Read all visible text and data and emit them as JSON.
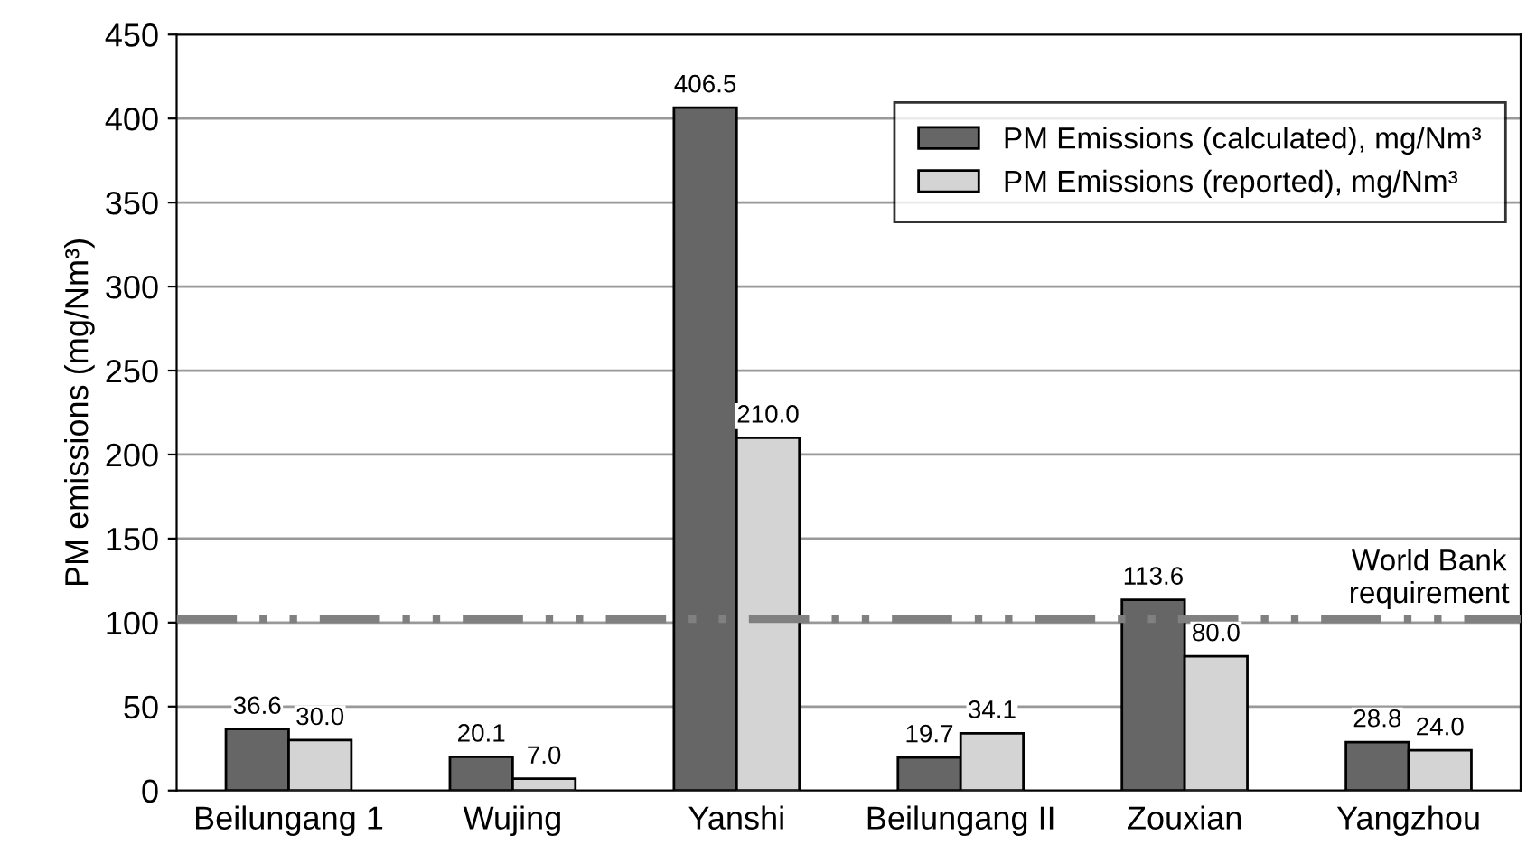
{
  "chart_data": {
    "type": "bar",
    "ylabel": "PM emissions (mg/Nm³)",
    "categories": [
      "Beilungang 1",
      "Wujing",
      "Yanshi",
      "Beilungang II",
      "Zouxian",
      "Yangzhou"
    ],
    "series": [
      {
        "name": "PM Emissions (calculated), mg/Nm³",
        "color": "#666666",
        "values": [
          36.6,
          20.1,
          406.5,
          19.7,
          113.6,
          28.8
        ],
        "value_labels": [
          "36.6",
          "20.1",
          "406.5",
          "19.7",
          "113.6",
          "28.8"
        ]
      },
      {
        "name": "PM Emissions (reported), mg/Nm³",
        "color": "#d4d4d4",
        "values": [
          30.0,
          7.0,
          210.0,
          34.1,
          80.0,
          24.0
        ],
        "value_labels": [
          "30.0",
          "7.0",
          "210.0",
          "34.1",
          "80.0",
          "24.0"
        ]
      }
    ],
    "ylim": [
      0,
      450
    ],
    "yticks": [
      0,
      50,
      100,
      150,
      200,
      250,
      300,
      350,
      400,
      450
    ],
    "grid": "y",
    "legend": "top right",
    "ref_lines": [
      {
        "axis": "y",
        "value": 102,
        "label": "World Bank requirement",
        "color": "#808080",
        "line_style": "dashed"
      }
    ]
  }
}
